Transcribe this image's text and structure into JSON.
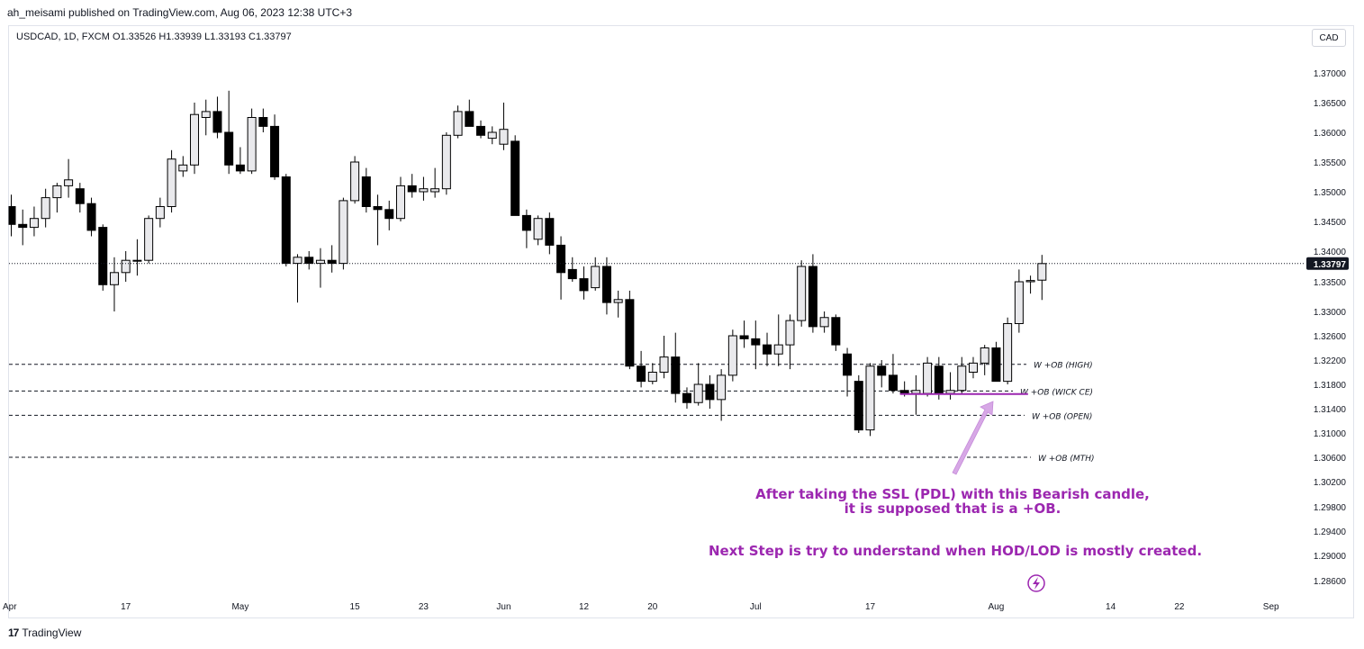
{
  "header": {
    "publisher_text": "ah_meisami published on TradingView.com, Aug 06, 2023 12:38 UTC+3",
    "legend_text": "USDCAD, 1D, FXCM  O1.33526  H1.33939  L1.33193  C1.33797",
    "currency_button": "CAD"
  },
  "footer": {
    "logo_mark": "17",
    "logo_text": "TradingView"
  },
  "colors": {
    "bull_fill": "#e9e9ec",
    "bear_fill": "#000000",
    "wick": "#000000",
    "level_line": "#131722",
    "annotation_text": "#9c27b0",
    "annotation_arrow": "#d7a8e6",
    "last_price_bg": "#131722",
    "grid_text": "#131722"
  },
  "chart_data": {
    "type": "candlestick",
    "symbol": "USDCAD",
    "timeframe": "1D",
    "broker": "FXCM",
    "ylim": [
      1.2845,
      1.3745
    ],
    "y_ticks": [
      1.37,
      1.365,
      1.36,
      1.355,
      1.35,
      1.345,
      1.34,
      1.335,
      1.33,
      1.326,
      1.322,
      1.318,
      1.314,
      1.31,
      1.306,
      1.302,
      1.298,
      1.294,
      1.29,
      1.286
    ],
    "y_tick_labels": [
      "1.37000",
      "1.36500",
      "1.36000",
      "1.35500",
      "1.35000",
      "1.34500",
      "1.34000",
      "1.33500",
      "1.33000",
      "1.32600",
      "1.32200",
      "1.31800",
      "1.31400",
      "1.31000",
      "1.30600",
      "1.30200",
      "1.29800",
      "1.29400",
      "1.29000",
      "1.28600"
    ],
    "x_ticks": [
      {
        "label": "Apr",
        "index": -0.5
      },
      {
        "label": "17",
        "index": 10
      },
      {
        "label": "May",
        "index": 20
      },
      {
        "label": "15",
        "index": 30
      },
      {
        "label": "23",
        "index": 36
      },
      {
        "label": "Jun",
        "index": 43
      },
      {
        "label": "12",
        "index": 50
      },
      {
        "label": "20",
        "index": 56
      },
      {
        "label": "Jul",
        "index": 65
      },
      {
        "label": "17",
        "index": 75
      },
      {
        "label": "Aug",
        "index": 86
      },
      {
        "label": "14",
        "index": 96
      },
      {
        "label": "22",
        "index": 102
      },
      {
        "label": "Sep",
        "index": 110
      }
    ],
    "last_price": 1.33797,
    "last_price_label": "1.33797",
    "candles": [
      {
        "o": 1.3475,
        "h": 1.3495,
        "l": 1.3425,
        "c": 1.3445
      },
      {
        "o": 1.3445,
        "h": 1.347,
        "l": 1.341,
        "c": 1.344
      },
      {
        "o": 1.344,
        "h": 1.3475,
        "l": 1.3425,
        "c": 1.3455
      },
      {
        "o": 1.3455,
        "h": 1.3505,
        "l": 1.344,
        "c": 1.349
      },
      {
        "o": 1.349,
        "h": 1.3515,
        "l": 1.3465,
        "c": 1.351
      },
      {
        "o": 1.351,
        "h": 1.3555,
        "l": 1.349,
        "c": 1.352
      },
      {
        "o": 1.3505,
        "h": 1.3515,
        "l": 1.3465,
        "c": 1.348
      },
      {
        "o": 1.348,
        "h": 1.349,
        "l": 1.3425,
        "c": 1.3435
      },
      {
        "o": 1.344,
        "h": 1.3445,
        "l": 1.3335,
        "c": 1.3345
      },
      {
        "o": 1.3345,
        "h": 1.339,
        "l": 1.33,
        "c": 1.3365
      },
      {
        "o": 1.3365,
        "h": 1.34,
        "l": 1.335,
        "c": 1.3385
      },
      {
        "o": 1.3385,
        "h": 1.342,
        "l": 1.336,
        "c": 1.3385
      },
      {
        "o": 1.3385,
        "h": 1.346,
        "l": 1.338,
        "c": 1.3455
      },
      {
        "o": 1.3455,
        "h": 1.349,
        "l": 1.344,
        "c": 1.3475
      },
      {
        "o": 1.3475,
        "h": 1.357,
        "l": 1.3465,
        "c": 1.3555
      },
      {
        "o": 1.3535,
        "h": 1.356,
        "l": 1.3525,
        "c": 1.3545
      },
      {
        "o": 1.3545,
        "h": 1.365,
        "l": 1.353,
        "c": 1.363
      },
      {
        "o": 1.3625,
        "h": 1.3655,
        "l": 1.3595,
        "c": 1.3635
      },
      {
        "o": 1.3635,
        "h": 1.366,
        "l": 1.359,
        "c": 1.36
      },
      {
        "o": 1.36,
        "h": 1.367,
        "l": 1.353,
        "c": 1.3545
      },
      {
        "o": 1.3545,
        "h": 1.3575,
        "l": 1.353,
        "c": 1.3535
      },
      {
        "o": 1.3535,
        "h": 1.364,
        "l": 1.353,
        "c": 1.3625
      },
      {
        "o": 1.3625,
        "h": 1.364,
        "l": 1.36,
        "c": 1.361
      },
      {
        "o": 1.361,
        "h": 1.363,
        "l": 1.352,
        "c": 1.3525
      },
      {
        "o": 1.3525,
        "h": 1.353,
        "l": 1.3375,
        "c": 1.338
      },
      {
        "o": 1.338,
        "h": 1.3395,
        "l": 1.3315,
        "c": 1.339
      },
      {
        "o": 1.339,
        "h": 1.34,
        "l": 1.337,
        "c": 1.338
      },
      {
        "o": 1.338,
        "h": 1.3405,
        "l": 1.334,
        "c": 1.3385
      },
      {
        "o": 1.3385,
        "h": 1.341,
        "l": 1.3365,
        "c": 1.338
      },
      {
        "o": 1.338,
        "h": 1.349,
        "l": 1.337,
        "c": 1.3485
      },
      {
        "o": 1.3485,
        "h": 1.356,
        "l": 1.348,
        "c": 1.355
      },
      {
        "o": 1.3525,
        "h": 1.354,
        "l": 1.3465,
        "c": 1.3475
      },
      {
        "o": 1.3475,
        "h": 1.3495,
        "l": 1.341,
        "c": 1.347
      },
      {
        "o": 1.347,
        "h": 1.3485,
        "l": 1.3435,
        "c": 1.3455
      },
      {
        "o": 1.3455,
        "h": 1.3525,
        "l": 1.345,
        "c": 1.351
      },
      {
        "o": 1.351,
        "h": 1.353,
        "l": 1.349,
        "c": 1.35
      },
      {
        "o": 1.35,
        "h": 1.3525,
        "l": 1.3485,
        "c": 1.3505
      },
      {
        "o": 1.35,
        "h": 1.354,
        "l": 1.349,
        "c": 1.3505
      },
      {
        "o": 1.3505,
        "h": 1.36,
        "l": 1.3495,
        "c": 1.3595
      },
      {
        "o": 1.3595,
        "h": 1.3645,
        "l": 1.359,
        "c": 1.3635
      },
      {
        "o": 1.3635,
        "h": 1.3655,
        "l": 1.361,
        "c": 1.361
      },
      {
        "o": 1.361,
        "h": 1.362,
        "l": 1.359,
        "c": 1.3595
      },
      {
        "o": 1.359,
        "h": 1.361,
        "l": 1.358,
        "c": 1.36
      },
      {
        "o": 1.358,
        "h": 1.365,
        "l": 1.357,
        "c": 1.3605
      },
      {
        "o": 1.3585,
        "h": 1.3595,
        "l": 1.346,
        "c": 1.346
      },
      {
        "o": 1.346,
        "h": 1.347,
        "l": 1.3405,
        "c": 1.3435
      },
      {
        "o": 1.342,
        "h": 1.346,
        "l": 1.341,
        "c": 1.3455
      },
      {
        "o": 1.3455,
        "h": 1.3465,
        "l": 1.3395,
        "c": 1.341
      },
      {
        "o": 1.341,
        "h": 1.3425,
        "l": 1.332,
        "c": 1.3365
      },
      {
        "o": 1.337,
        "h": 1.339,
        "l": 1.335,
        "c": 1.3355
      },
      {
        "o": 1.3355,
        "h": 1.3375,
        "l": 1.332,
        "c": 1.3335
      },
      {
        "o": 1.334,
        "h": 1.339,
        "l": 1.3335,
        "c": 1.3375
      },
      {
        "o": 1.3375,
        "h": 1.339,
        "l": 1.3295,
        "c": 1.3315
      },
      {
        "o": 1.3315,
        "h": 1.3335,
        "l": 1.329,
        "c": 1.332
      },
      {
        "o": 1.332,
        "h": 1.3335,
        "l": 1.3205,
        "c": 1.321
      },
      {
        "o": 1.321,
        "h": 1.3235,
        "l": 1.3175,
        "c": 1.3185
      },
      {
        "o": 1.3185,
        "h": 1.3215,
        "l": 1.318,
        "c": 1.32
      },
      {
        "o": 1.32,
        "h": 1.326,
        "l": 1.319,
        "c": 1.3225
      },
      {
        "o": 1.3225,
        "h": 1.3265,
        "l": 1.315,
        "c": 1.3165
      },
      {
        "o": 1.3165,
        "h": 1.3175,
        "l": 1.314,
        "c": 1.315
      },
      {
        "o": 1.315,
        "h": 1.3215,
        "l": 1.3145,
        "c": 1.318
      },
      {
        "o": 1.318,
        "h": 1.3195,
        "l": 1.314,
        "c": 1.3155
      },
      {
        "o": 1.3155,
        "h": 1.3205,
        "l": 1.312,
        "c": 1.3195
      },
      {
        "o": 1.3195,
        "h": 1.327,
        "l": 1.3185,
        "c": 1.326
      },
      {
        "o": 1.326,
        "h": 1.3285,
        "l": 1.324,
        "c": 1.3255
      },
      {
        "o": 1.3255,
        "h": 1.3285,
        "l": 1.3205,
        "c": 1.3245
      },
      {
        "o": 1.3245,
        "h": 1.3265,
        "l": 1.321,
        "c": 1.323
      },
      {
        "o": 1.323,
        "h": 1.3295,
        "l": 1.321,
        "c": 1.3245
      },
      {
        "o": 1.3245,
        "h": 1.3295,
        "l": 1.3205,
        "c": 1.3285
      },
      {
        "o": 1.3285,
        "h": 1.3385,
        "l": 1.3275,
        "c": 1.3375
      },
      {
        "o": 1.3375,
        "h": 1.3395,
        "l": 1.3265,
        "c": 1.3275
      },
      {
        "o": 1.3275,
        "h": 1.33,
        "l": 1.3265,
        "c": 1.329
      },
      {
        "o": 1.329,
        "h": 1.3295,
        "l": 1.3235,
        "c": 1.3245
      },
      {
        "o": 1.323,
        "h": 1.324,
        "l": 1.316,
        "c": 1.3195
      },
      {
        "o": 1.3185,
        "h": 1.3195,
        "l": 1.31,
        "c": 1.3105
      },
      {
        "o": 1.3105,
        "h": 1.3215,
        "l": 1.3095,
        "c": 1.321
      },
      {
        "o": 1.321,
        "h": 1.322,
        "l": 1.3175,
        "c": 1.3195
      },
      {
        "o": 1.3195,
        "h": 1.323,
        "l": 1.3165,
        "c": 1.317
      },
      {
        "o": 1.317,
        "h": 1.3185,
        "l": 1.316,
        "c": 1.3165
      },
      {
        "o": 1.3165,
        "h": 1.3195,
        "l": 1.313,
        "c": 1.317
      },
      {
        "o": 1.3165,
        "h": 1.3225,
        "l": 1.316,
        "c": 1.3215
      },
      {
        "o": 1.321,
        "h": 1.3225,
        "l": 1.3155,
        "c": 1.3165
      },
      {
        "o": 1.3165,
        "h": 1.32,
        "l": 1.3155,
        "c": 1.317
      },
      {
        "o": 1.317,
        "h": 1.3225,
        "l": 1.3165,
        "c": 1.321
      },
      {
        "o": 1.32,
        "h": 1.3225,
        "l": 1.319,
        "c": 1.3215
      },
      {
        "o": 1.3215,
        "h": 1.3245,
        "l": 1.3195,
        "c": 1.324
      },
      {
        "o": 1.324,
        "h": 1.325,
        "l": 1.3185,
        "c": 1.3185
      },
      {
        "o": 1.3185,
        "h": 1.329,
        "l": 1.318,
        "c": 1.328
      },
      {
        "o": 1.328,
        "h": 1.337,
        "l": 1.3265,
        "c": 1.335
      },
      {
        "o": 1.335,
        "h": 1.336,
        "l": 1.333,
        "c": 1.3352
      },
      {
        "o": 1.33526,
        "h": 1.33939,
        "l": 1.33193,
        "c": 1.33797
      }
    ],
    "levels": [
      {
        "label": "W +OB (HIGH)",
        "value": 1.3213,
        "style": "dashed"
      },
      {
        "label": "W +OB (WICK CE)",
        "value": 1.3169,
        "style": "dashed"
      },
      {
        "label": "W +OB (OPEN)",
        "value": 1.3129,
        "style": "dashed"
      },
      {
        "label": "W +OB (MTH)",
        "value": 1.306,
        "style": "dashed"
      }
    ],
    "sweep_line": {
      "value": 1.3164,
      "from_index": 78,
      "to_index": 88
    },
    "annotations": [
      "After taking the SSL (PDL) with this Bearish candle,",
      "it is supposed that is a +OB.",
      "Next Step is try to understand when HOD/LOD is mostly created."
    ]
  }
}
